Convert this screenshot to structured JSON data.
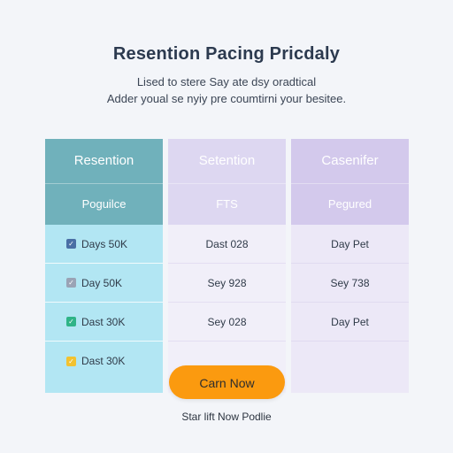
{
  "header": {
    "title": "Resention Pacing Pricdaly",
    "subtitle_line1": "Lised to stere Say ate dsy oradtical",
    "subtitle_line2": "Adder youal se nyiy pre coumtirni your besitee."
  },
  "columns": [
    {
      "name": "Resention",
      "subheader": "Poguilce",
      "rows": [
        "Days 50K",
        "Day 50K",
        "Dast 30K",
        "Dast 30K"
      ],
      "icons": [
        "check-icon",
        "check-icon",
        "check-icon",
        "check-icon"
      ]
    },
    {
      "name": "Setention",
      "subheader": "FTS",
      "rows": [
        "Dast 028",
        "Sey 928",
        "Sey 028"
      ]
    },
    {
      "name": "Casenifer",
      "subheader": "Pegured",
      "rows": [
        "Day Pet",
        "Sey 738",
        "Day Pet"
      ]
    }
  ],
  "cta": {
    "label": "Carn Now"
  },
  "footer": {
    "text": "Star lift Now Podlie"
  },
  "colors": {
    "accent": "#fb9a0f",
    "col1_header": "#70b1bb",
    "col1_body": "#b2e6f3",
    "col2_header": "#ddd7f1",
    "col3_header": "#d3c9ec",
    "icon1": "#4a6fa5",
    "icon2": "#9aa3b5",
    "icon3": "#2fb487",
    "icon4": "#f2c230"
  }
}
